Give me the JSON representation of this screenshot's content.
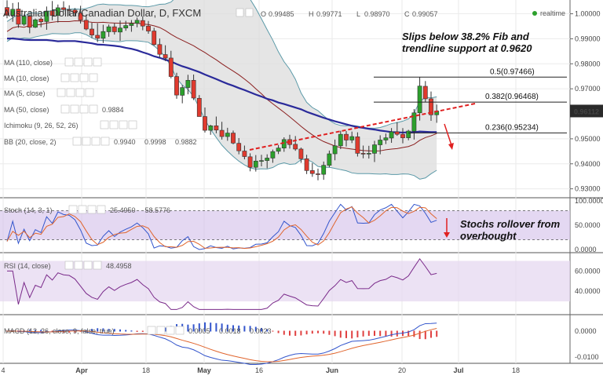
{
  "header": {
    "title": "Australian Dollar/Canadian Dollar, D, FXCM",
    "ohlc": [
      {
        "k": "O",
        "v": "0.99485"
      },
      {
        "k": "H",
        "v": "0.99771"
      },
      {
        "k": "L",
        "v": "0.98970"
      },
      {
        "k": "C",
        "v": "0.99057"
      }
    ],
    "status": "realtime"
  },
  "indicators": [
    {
      "label": "MA (110, close)",
      "values": []
    },
    {
      "label": "MA (10, close)",
      "values": []
    },
    {
      "label": "MA (5, close)",
      "values": []
    },
    {
      "label": "MA (50, close)",
      "values": [
        {
          "v": "0.9884",
          "color": "#2a2a90"
        }
      ]
    },
    {
      "label": "Ichimoku (9, 26, 52, 26)",
      "values": []
    },
    {
      "label": "BB (20, close, 2)",
      "values": [
        {
          "v": "0.9940",
          "color": "#8b1010"
        },
        {
          "v": "0.9998",
          "color": "#555"
        },
        {
          "v": "0.9882",
          "color": "#555"
        }
      ]
    }
  ],
  "annotations": {
    "main": [
      "Slips below 38.2% Fib and",
      "trendline support at 0.9620"
    ],
    "stoch": [
      "Stochs rollover from",
      "overbought"
    ]
  },
  "fib_levels": [
    {
      "label": "0.5(0.97466)",
      "value": 0.97466
    },
    {
      "label": "0.382(0.96468)",
      "value": 0.96468
    },
    {
      "label": "0.236(0.95234)",
      "value": 0.95234
    }
  ],
  "last_price": "0.96112",
  "x_axis": {
    "labels": [
      "4",
      "Apr",
      "18",
      "May",
      "16",
      "Jun",
      "20",
      "Jul",
      "18"
    ],
    "bold": [
      "Apr",
      "May",
      "Jun",
      "Jul"
    ]
  },
  "y_axes": {
    "price": [
      "1.00000",
      "0.99000",
      "0.98000",
      "0.97000",
      "0.95000",
      "0.94000",
      "0.93000"
    ],
    "stoch": [
      "100.0000",
      "50.0000",
      "0.0000"
    ],
    "rsi": [
      "60.0000",
      "40.0000"
    ],
    "macd": [
      "0.0000",
      "-0.0100"
    ]
  },
  "panes": {
    "stoch": {
      "label": "Stoch (14, 3, 1)",
      "values": [
        {
          "v": "25.4950",
          "color": "#3355cc"
        },
        {
          "v": "58.5776",
          "color": "#e0642c"
        }
      ]
    },
    "rsi": {
      "label": "RSI (14, close)",
      "values": [
        {
          "v": "48.4958",
          "color": "#7a2a8a"
        }
      ]
    },
    "macd": {
      "label": "MACD (12, 26, close, 9, false, true)",
      "values": [
        {
          "v": "0.0005",
          "color": "#d03030"
        },
        {
          "v": "0.0018",
          "color": "#3355cc"
        },
        {
          "v": "0.0023",
          "color": "#e0642c"
        }
      ]
    }
  },
  "chart_data": {
    "type": "candlestick",
    "title": "Australian Dollar/Canadian Dollar, D, FXCM",
    "ylim": [
      0.928,
      1.003
    ],
    "candles": [
      [
        1.0025,
        1.0054,
        0.9982,
        0.9994
      ],
      [
        0.9994,
        1.0043,
        0.9968,
        1.0018
      ],
      [
        1.0019,
        1.0046,
        0.9944,
        0.9958
      ],
      [
        0.9958,
        0.9997,
        0.9952,
        0.999
      ],
      [
        0.999,
        0.9997,
        0.9922,
        0.9946
      ],
      [
        0.9946,
        0.9981,
        0.9943,
        0.9976
      ],
      [
        0.9979,
        0.9987,
        0.9946,
        0.9968
      ],
      [
        0.9969,
        1.0029,
        0.9936,
        1.0011
      ],
      [
        1.0012,
        1.0051,
        0.9974,
        0.9993
      ],
      [
        0.9993,
        1.0037,
        0.9965,
        1.0024
      ],
      [
        1.0024,
        1.005,
        1.0008,
        1.0017
      ],
      [
        1.0016,
        1.0034,
        0.9992,
        1.0015
      ],
      [
        1.0015,
        1.0023,
        0.9991,
        1.0003
      ],
      [
        1.0003,
        1.0032,
        0.9961,
        0.9975
      ],
      [
        0.9974,
        0.9997,
        0.9934,
        0.9939
      ],
      [
        0.9939,
        0.9964,
        0.9903,
        0.9915
      ],
      [
        0.9914,
        0.9962,
        0.9887,
        0.9902
      ],
      [
        0.9902,
        0.9956,
        0.9883,
        0.9929
      ],
      [
        0.9928,
        0.9957,
        0.9908,
        0.9948
      ],
      [
        0.9948,
        0.9962,
        0.9917,
        0.9928
      ],
      [
        0.9927,
        0.9973,
        0.9892,
        0.9943
      ],
      [
        0.9943,
        0.9972,
        0.9932,
        0.9953
      ],
      [
        0.9953,
        0.9975,
        0.9928,
        0.9961
      ],
      [
        0.9962,
        0.9985,
        0.9946,
        0.9974
      ],
      [
        0.9973,
        0.999,
        0.9934,
        0.9951
      ],
      [
        0.9951,
        0.9971,
        0.992,
        0.9931
      ],
      [
        0.9931,
        0.9944,
        0.9872,
        0.9877
      ],
      [
        0.9877,
        0.9901,
        0.9825,
        0.9838
      ],
      [
        0.9837,
        0.9874,
        0.9811,
        0.9823
      ],
      [
        0.9823,
        0.9852,
        0.9742,
        0.9749
      ],
      [
        0.9749,
        0.9764,
        0.966,
        0.9675
      ],
      [
        0.9674,
        0.9715,
        0.9642,
        0.9705
      ],
      [
        0.9705,
        0.9756,
        0.9678,
        0.9734
      ],
      [
        0.9734,
        0.9757,
        0.9655,
        0.9663
      ],
      [
        0.9662,
        0.9675,
        0.9589,
        0.9589
      ],
      [
        0.9589,
        0.9625,
        0.9525,
        0.9534
      ],
      [
        0.9534,
        0.9556,
        0.9516,
        0.9552
      ],
      [
        0.9552,
        0.9589,
        0.9522,
        0.9535
      ],
      [
        0.9534,
        0.9568,
        0.9497,
        0.9509
      ],
      [
        0.9509,
        0.9544,
        0.9492,
        0.9523
      ],
      [
        0.9523,
        0.9533,
        0.9478,
        0.9483
      ],
      [
        0.9482,
        0.9503,
        0.9438,
        0.9452
      ],
      [
        0.9451,
        0.9473,
        0.9418,
        0.9429
      ],
      [
        0.9428,
        0.9442,
        0.937,
        0.9386
      ],
      [
        0.9386,
        0.9435,
        0.9369,
        0.9411
      ],
      [
        0.9412,
        0.9436,
        0.939,
        0.9413
      ],
      [
        0.9413,
        0.9438,
        0.9382,
        0.9423
      ],
      [
        0.9423,
        0.9457,
        0.9404,
        0.9449
      ],
      [
        0.945,
        0.9475,
        0.9439,
        0.9463
      ],
      [
        0.9463,
        0.9506,
        0.9448,
        0.9497
      ],
      [
        0.9497,
        0.9516,
        0.9461,
        0.9477
      ],
      [
        0.9478,
        0.9511,
        0.9452,
        0.9459
      ],
      [
        0.9459,
        0.9465,
        0.9404,
        0.942
      ],
      [
        0.942,
        0.9436,
        0.9359,
        0.9373
      ],
      [
        0.9373,
        0.9403,
        0.9348,
        0.9361
      ],
      [
        0.936,
        0.9381,
        0.9334,
        0.9357
      ],
      [
        0.9358,
        0.9409,
        0.9336,
        0.9394
      ],
      [
        0.9394,
        0.9453,
        0.9386,
        0.944
      ],
      [
        0.944,
        0.9497,
        0.9414,
        0.9472
      ],
      [
        0.9472,
        0.9532,
        0.9459,
        0.9518
      ],
      [
        0.9518,
        0.9531,
        0.9469,
        0.9495
      ],
      [
        0.9495,
        0.9529,
        0.9483,
        0.9509
      ],
      [
        0.9508,
        0.9526,
        0.9429,
        0.9442
      ],
      [
        0.9442,
        0.9473,
        0.9422,
        0.9441
      ],
      [
        0.9441,
        0.9472,
        0.9421,
        0.9442
      ],
      [
        0.9442,
        0.9492,
        0.9407,
        0.9476
      ],
      [
        0.9476,
        0.9514,
        0.9438,
        0.9495
      ],
      [
        0.9495,
        0.9521,
        0.9479,
        0.9504
      ],
      [
        0.9503,
        0.9543,
        0.9484,
        0.9528
      ],
      [
        0.9528,
        0.9567,
        0.9512,
        0.9518
      ],
      [
        0.9518,
        0.9543,
        0.9482,
        0.9504
      ],
      [
        0.9504,
        0.9536,
        0.9494,
        0.9531
      ],
      [
        0.953,
        0.9619,
        0.9497,
        0.9604
      ],
      [
        0.9604,
        0.9746,
        0.9573,
        0.9711
      ],
      [
        0.971,
        0.9731,
        0.9646,
        0.966
      ],
      [
        0.966,
        0.9689,
        0.9572,
        0.9596
      ],
      [
        0.9596,
        0.9637,
        0.9564,
        0.9611
      ]
    ],
    "series": [
      {
        "name": "MA (50, close)",
        "values": [
          0.9901,
          0.9901,
          0.9899,
          0.9896,
          0.9895,
          0.9895,
          0.9895,
          0.9895,
          0.9893,
          0.989,
          0.9891,
          0.9891,
          0.9891,
          0.9888,
          0.9885,
          0.9882,
          0.9877,
          0.9876,
          0.9874,
          0.9872,
          0.9869,
          0.9864,
          0.986,
          0.9854,
          0.9846,
          0.9839,
          0.983,
          0.9824,
          0.9816,
          0.9809,
          0.9799,
          0.979,
          0.9783,
          0.9775,
          0.9767,
          0.9757,
          0.9748,
          0.9739,
          0.9729,
          0.972,
          0.9712,
          0.9703,
          0.9695,
          0.9686,
          0.9677,
          0.9669,
          0.966,
          0.9654,
          0.9645,
          0.9639,
          0.9632,
          0.9625,
          0.9618,
          0.9608,
          0.96,
          0.9592,
          0.9584,
          0.9577,
          0.957,
          0.9564,
          0.9558,
          0.9552,
          0.9547,
          0.9544,
          0.954,
          0.9537,
          0.9533,
          0.953,
          0.9527,
          0.9526,
          0.9525,
          0.9526,
          0.9526,
          0.9529,
          0.9528,
          0.9527,
          0.9527
        ]
      },
      {
        "name": "BB (20, close, 2)",
        "values": [
          0.9929,
          0.9944,
          0.9949,
          0.9946,
          0.9953,
          0.9955,
          0.9957,
          0.9963,
          0.9966,
          0.9969,
          0.9969,
          0.9969,
          0.9972,
          0.9971,
          0.9969,
          0.9966,
          0.9965,
          0.9966,
          0.9964,
          0.9963,
          0.9962,
          0.9963,
          0.9963,
          0.9962,
          0.9959,
          0.9957,
          0.9952,
          0.9945,
          0.9933,
          0.9918,
          0.9905,
          0.9894,
          0.9883,
          0.9872,
          0.9858,
          0.9845,
          0.983,
          0.9816,
          0.98,
          0.9785,
          0.9771,
          0.9756,
          0.9739,
          0.9721,
          0.97,
          0.968,
          0.9658,
          0.964,
          0.9623,
          0.9606,
          0.9588,
          0.9569,
          0.955,
          0.9532,
          0.9516,
          0.9501,
          0.9489,
          0.948,
          0.9471,
          0.9465,
          0.9462,
          0.9459,
          0.9456,
          0.9453,
          0.9452,
          0.9451,
          0.9452,
          0.9456,
          0.9459,
          0.9461,
          0.9465,
          0.9469,
          0.9478,
          0.9494,
          0.9505,
          0.9512,
          0.9521
        ]
      }
    ]
  }
}
